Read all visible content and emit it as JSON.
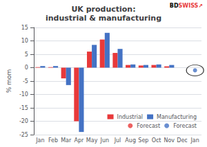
{
  "chart_data": {
    "type": "bar",
    "title": "UK production:\nindustrial & manufacturing",
    "ylabel": "% mom",
    "categories": [
      "Jan",
      "Feb",
      "Mar",
      "Apr",
      "May",
      "Jun",
      "Jul",
      "Aug",
      "Sep",
      "Oct",
      "Nov",
      "Dec",
      "Jan"
    ],
    "series": [
      {
        "name": "Industrial",
        "type": "bar",
        "color": "#e8393a",
        "values": [
          0.2,
          0.2,
          -4.0,
          -20.0,
          6.0,
          10.5,
          5.5,
          1.0,
          0.8,
          1.0,
          0.5,
          null,
          null
        ]
      },
      {
        "name": "Manufacturing",
        "type": "bar",
        "color": "#4472c4",
        "values": [
          0.6,
          0.6,
          -6.5,
          -24.0,
          8.5,
          13.0,
          7.0,
          1.2,
          1.0,
          1.2,
          1.0,
          null,
          null
        ]
      },
      {
        "name": "Forecast",
        "type": "scatter",
        "marker": "circle",
        "color": "#e8393a",
        "values": [
          null,
          null,
          null,
          null,
          null,
          null,
          null,
          null,
          null,
          null,
          null,
          null,
          null
        ]
      },
      {
        "name": "Forecast",
        "type": "scatter",
        "marker": "circle",
        "color": "#4472c4",
        "values": [
          null,
          null,
          null,
          null,
          null,
          null,
          null,
          null,
          null,
          null,
          null,
          null,
          -1.0
        ]
      }
    ],
    "ylim": [
      -25,
      15
    ],
    "yticks": [
      -25,
      -20,
      -15,
      -10,
      -5,
      0,
      5,
      10,
      15
    ],
    "grid": true,
    "legend": "lower right",
    "annotations": [
      {
        "text": "BD",
        "color": "#000000"
      },
      {
        "text": "SWISS",
        "color": "#e8393a"
      },
      {
        "text": "↗",
        "color": "#e8393a"
      }
    ]
  }
}
